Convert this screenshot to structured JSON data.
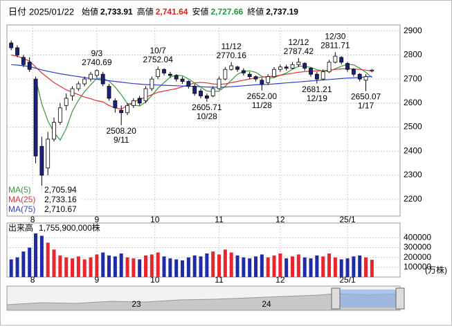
{
  "header": {
    "date_label": "日付",
    "date": "2025/01/22",
    "items": [
      {
        "label": "始値",
        "value": "2,733.91",
        "color": "#000000"
      },
      {
        "label": "高値",
        "value": "2,741.64",
        "color": "#e0201a"
      },
      {
        "label": "安値",
        "value": "2,727.66",
        "color": "#1a9a3a"
      },
      {
        "label": "終値",
        "value": "2,737.19",
        "color": "#000000"
      }
    ]
  },
  "chart_data": [
    {
      "type": "candlestick",
      "up_color": "#ffffff",
      "down_color": "#1a2380",
      "edge_color": "#000000",
      "open": [
        2850,
        2830,
        2790,
        2770,
        2700,
        2420,
        2330,
        2450,
        2520,
        2590,
        2630,
        2660,
        2680,
        2700,
        2715,
        2720,
        2670,
        2610,
        2570,
        2560,
        2590,
        2620,
        2610,
        2660,
        2710,
        2740,
        2720,
        2715,
        2700,
        2690,
        2670,
        2650,
        2630,
        2630,
        2660,
        2700,
        2740,
        2750,
        2735,
        2720,
        2710,
        2695,
        2685,
        2710,
        2740,
        2750,
        2745,
        2760,
        2765,
        2745,
        2720,
        2700,
        2730,
        2770,
        2790,
        2765,
        2740,
        2720,
        2695,
        2733.91
      ],
      "high": [
        2860,
        2840,
        2800,
        2790,
        2710,
        2460,
        2480,
        2540,
        2600,
        2640,
        2670,
        2690,
        2710,
        2730,
        2740.69,
        2730,
        2680,
        2620,
        2590,
        2600,
        2620,
        2630,
        2670,
        2710,
        2752.04,
        2745,
        2730,
        2720,
        2710,
        2695,
        2680,
        2660,
        2640,
        2670,
        2710,
        2750,
        2770.16,
        2755,
        2745,
        2730,
        2715,
        2705,
        2720,
        2750,
        2760,
        2760,
        2770,
        2787.42,
        2770,
        2750,
        2730,
        2740,
        2780,
        2811.71,
        2795,
        2770,
        2745,
        2725,
        2720,
        2741.64
      ],
      "low": [
        2820,
        2790,
        2750,
        2730,
        2350,
        2230,
        2300,
        2440,
        2510,
        2570,
        2610,
        2650,
        2670,
        2690,
        2705,
        2670,
        2610,
        2560,
        2508.2,
        2550,
        2580,
        2590,
        2600,
        2650,
        2700,
        2715,
        2705,
        2690,
        2680,
        2660,
        2630,
        2620,
        2605.71,
        2625,
        2655,
        2695,
        2735,
        2730,
        2715,
        2700,
        2690,
        2652,
        2675,
        2705,
        2730,
        2735,
        2740,
        2750,
        2735,
        2710,
        2681.21,
        2695,
        2725,
        2765,
        2760,
        2730,
        2710,
        2690,
        2650.07,
        2727.66
      ],
      "close": [
        2830,
        2800,
        2760,
        2740,
        2380,
        2300,
        2450,
        2520,
        2580,
        2620,
        2660,
        2680,
        2700,
        2720,
        2735,
        2680,
        2620,
        2580,
        2560,
        2590,
        2610,
        2600,
        2660,
        2700,
        2740,
        2725,
        2715,
        2700,
        2690,
        2670,
        2640,
        2630,
        2620,
        2660,
        2700,
        2740,
        2755,
        2740,
        2725,
        2710,
        2700,
        2680,
        2710,
        2740,
        2750,
        2745,
        2760,
        2770,
        2745,
        2720,
        2700,
        2730,
        2770,
        2795,
        2770,
        2740,
        2720,
        2700,
        2710,
        2737.19
      ],
      "series": [
        {
          "name": "MA(5)",
          "color": "#339933",
          "legend_value": "2,705.94",
          "values": [
            null,
            null,
            null,
            null,
            2702,
            2596,
            2526,
            2478,
            2446,
            2494,
            2566,
            2612,
            2648,
            2676,
            2703,
            2703,
            2691,
            2667,
            2635,
            2598,
            2592,
            2588,
            2604,
            2632,
            2662,
            2685,
            2708,
            2716,
            2714,
            2700,
            2683,
            2666,
            2650,
            2648,
            2650,
            2670,
            2695,
            2720,
            2732,
            2734,
            2728,
            2711,
            2705,
            2706,
            2716,
            2725,
            2741,
            2753,
            2754,
            2748,
            2739,
            2733,
            2733,
            2743,
            2753,
            2761,
            2759,
            2745,
            2728,
            2705.94
          ]
        },
        {
          "name": "MA(25)",
          "color": "#e03030",
          "legend_value": "2,733.16",
          "values": [
            2800,
            2795,
            2785,
            2775,
            2750,
            2725,
            2705,
            2685,
            2670,
            2655,
            2645,
            2635,
            2625,
            2618,
            2610,
            2605,
            2590,
            2580,
            2575,
            2590,
            2605,
            2615,
            2625,
            2635,
            2645,
            2650,
            2655,
            2660,
            2668,
            2676,
            2684,
            2686,
            2684,
            2680,
            2678,
            2680,
            2685,
            2690,
            2695,
            2700,
            2705,
            2708,
            2710,
            2712,
            2716,
            2720,
            2724,
            2728,
            2731,
            2733,
            2734,
            2735,
            2737,
            2740,
            2742,
            2743,
            2742,
            2740,
            2737,
            2733.16
          ]
        },
        {
          "name": "MA(75)",
          "color": "#2f3fcf",
          "legend_value": "2,710.67",
          "values": [
            2760,
            2758,
            2755,
            2752,
            2745,
            2738,
            2732,
            2727,
            2722,
            2718,
            2714,
            2710,
            2706,
            2702,
            2699,
            2696,
            2693,
            2690,
            2687,
            2684,
            2681,
            2679,
            2677,
            2676,
            2675,
            2674,
            2673,
            2672,
            2671,
            2670,
            2669,
            2668,
            2667,
            2666,
            2666,
            2667,
            2668,
            2670,
            2672,
            2674,
            2676,
            2677,
            2678,
            2680,
            2682,
            2684,
            2686,
            2688,
            2690,
            2692,
            2694,
            2696,
            2698,
            2700,
            2702,
            2704,
            2705,
            2707,
            2709,
            2710.67
          ]
        }
      ],
      "annotations": [
        {
          "index": 14,
          "type": "high",
          "value": 2740.69,
          "date": "9/3"
        },
        {
          "index": 18,
          "type": "low",
          "value": 2508.2,
          "label": "2508.20",
          "date": "9/11"
        },
        {
          "index": 24,
          "type": "high",
          "value": 2752.04,
          "date": "10/7"
        },
        {
          "index": 32,
          "type": "low",
          "value": 2605.71,
          "date": "10/28"
        },
        {
          "index": 36,
          "type": "high",
          "value": 2770.16,
          "date": "11/12"
        },
        {
          "index": 41,
          "type": "low",
          "value": 2652,
          "label": "2652.00",
          "date": "11/28"
        },
        {
          "index": 47,
          "type": "high",
          "value": 2787.42,
          "date": "12/12"
        },
        {
          "index": 50,
          "type": "low",
          "value": 2681.21,
          "date": "12/19"
        },
        {
          "index": 53,
          "type": "high",
          "value": 2811.71,
          "date": "12/30"
        },
        {
          "index": 58,
          "type": "low",
          "value": 2650.07,
          "date": "1/17"
        }
      ],
      "ylim": [
        2130,
        2925
      ],
      "yticks": [
        2200,
        2300,
        2400,
        2500,
        2600,
        2700,
        2800,
        2900
      ],
      "xlim": [
        -0.7,
        63.6
      ],
      "xticks": [
        {
          "value": 3.5,
          "label": "8"
        },
        {
          "value": 14,
          "label": "9"
        },
        {
          "value": 23.5,
          "label": "10"
        },
        {
          "value": 34,
          "label": "11"
        },
        {
          "value": 44,
          "label": "12"
        },
        {
          "value": 55,
          "label": "25/1"
        }
      ],
      "grid": true
    },
    {
      "type": "volume",
      "label": "出来高",
      "last_label": "1,755,900,000株",
      "unit": "(万株)",
      "up_color": "#e8262d",
      "down_color": "#1f2ca8",
      "values": [
        180000,
        200000,
        260000,
        300000,
        450000,
        420000,
        350000,
        280000,
        220000,
        200000,
        190000,
        210000,
        180000,
        200000,
        230000,
        250000,
        220000,
        210000,
        240000,
        200000,
        190000,
        180000,
        220000,
        230000,
        250000,
        210000,
        190000,
        180000,
        170000,
        200000,
        220000,
        210000,
        240000,
        260000,
        230000,
        280000,
        250000,
        220000,
        200000,
        190000,
        210000,
        230000,
        200000,
        220000,
        240000,
        190000,
        210000,
        230000,
        200000,
        190000,
        220000,
        210000,
        240000,
        200000,
        180000,
        190000,
        210000,
        220000,
        200000,
        175590
      ],
      "ylim": [
        0,
        550000
      ],
      "yticks": [
        100000,
        200000,
        300000,
        400000
      ]
    }
  ],
  "navigator": {
    "labels": [
      "23",
      "24"
    ]
  }
}
